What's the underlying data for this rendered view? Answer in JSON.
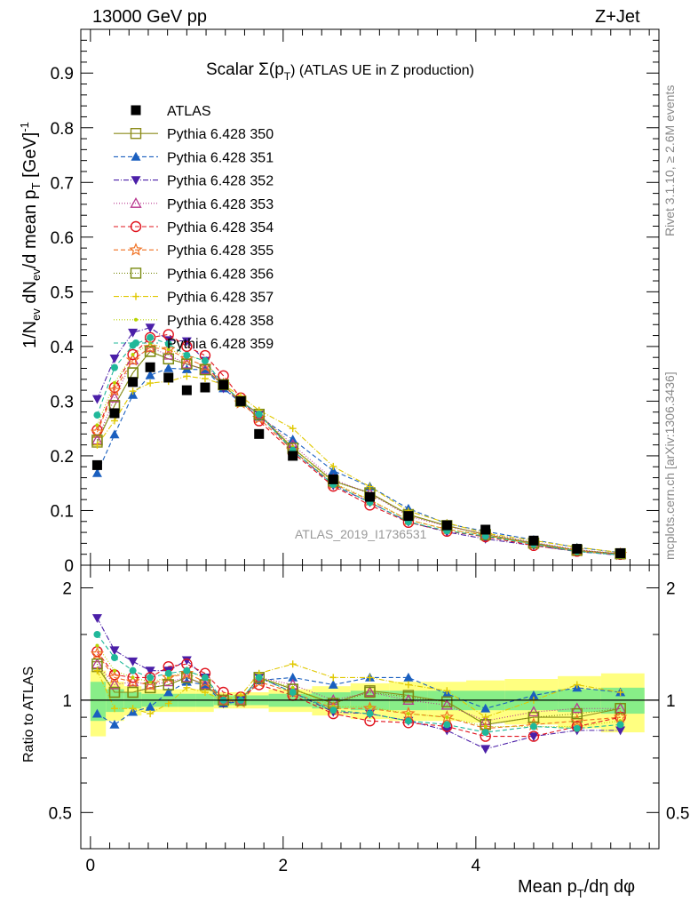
{
  "header": {
    "left": "13000 GeV pp",
    "right": "Z+Jet"
  },
  "side": {
    "rivet": "Rivet 3.1.10, ≥ 2.6M events",
    "mcplots": "mcplots.cern.ch [arXiv:1306.3436]"
  },
  "watermark": "ATLAS_2019_I1736531",
  "colors": {
    "data": "#000000",
    "p350": "#8c8c1a",
    "p351": "#1a5fbf",
    "p352": "#4b1fa8",
    "p353": "#b8378f",
    "p354": "#e0141e",
    "p355": "#f07020",
    "p356": "#7a8a10",
    "p357": "#e0c800",
    "p358": "#b8d400",
    "p359": "#20b89a",
    "band_green": "#88ee88",
    "band_yellow": "#ffff80"
  },
  "chart_data": {
    "type": "scatter",
    "title": "Scalar Σ(p_T) (ATLAS UE in Z production)",
    "title_main": "Scalar Σ(p",
    "title_sub": "T",
    "title_rest": ") (ATLAS UE in Z production)",
    "ylabel": "1/N_ev dN_ev/d mean p_T [GeV]^-1",
    "ylabel_parts": [
      "1/N",
      "ev",
      " dN",
      "ev",
      "/d mean p",
      "T",
      " [GeV]",
      "-1"
    ],
    "xlabel": "Mean p_T/dη dφ",
    "xlabel_parts": [
      "Mean p",
      "T",
      "/dη dφ"
    ],
    "ratio_ylabel": "Ratio to ATLAS",
    "xlim": [
      -0.1,
      5.9
    ],
    "ylim": [
      0,
      0.98
    ],
    "ratio_ylim": [
      0.4,
      2.3
    ],
    "ratio_scale": "log",
    "x_ticks": [
      0,
      2,
      4
    ],
    "y_ticks": [
      0,
      0.1,
      0.2,
      0.3,
      0.4,
      0.5,
      0.6,
      0.7,
      0.8,
      0.9
    ],
    "y_tick_labels": [
      "0",
      "0.1",
      "0.2",
      "0.3",
      "0.4",
      "0.5",
      "0.6",
      "0.7",
      "0.8",
      "0.9"
    ],
    "ratio_ticks": [
      0.5,
      1,
      2
    ],
    "ratio_tick_labels": [
      "0.5",
      "1",
      "2"
    ],
    "x": [
      0.07,
      0.25,
      0.44,
      0.62,
      0.81,
      1.0,
      1.19,
      1.38,
      1.56,
      1.75,
      2.1,
      2.52,
      2.9,
      3.3,
      3.7,
      4.1,
      4.6,
      5.05,
      5.5
    ],
    "x_edges": [
      0.0,
      0.16,
      0.35,
      0.53,
      0.72,
      0.91,
      1.09,
      1.28,
      1.47,
      1.66,
      1.85,
      2.3,
      2.7,
      3.1,
      3.5,
      3.9,
      4.3,
      4.85,
      5.3,
      5.75
    ],
    "data": {
      "name": "ATLAS",
      "values": [
        0.183,
        0.278,
        0.335,
        0.362,
        0.343,
        0.32,
        0.325,
        0.33,
        0.3,
        0.24,
        0.2,
        0.157,
        0.125,
        0.09,
        0.073,
        0.065,
        0.045,
        0.03,
        0.022
      ],
      "band_green": [
        0.12,
        0.07,
        0.05,
        0.04,
        0.04,
        0.04,
        0.04,
        0.03,
        0.03,
        0.03,
        0.04,
        0.05,
        0.06,
        0.06,
        0.06,
        0.06,
        0.06,
        0.07,
        0.08
      ],
      "band_yellow": [
        0.2,
        0.12,
        0.09,
        0.07,
        0.07,
        0.07,
        0.07,
        0.05,
        0.05,
        0.05,
        0.07,
        0.09,
        0.11,
        0.12,
        0.12,
        0.13,
        0.14,
        0.16,
        0.18
      ]
    },
    "series": [
      {
        "name": "Pythia 6.428 350",
        "key": "p350",
        "marker": "square-open",
        "dash": "",
        "ratios": [
          1.23,
          1.05,
          1.05,
          1.08,
          1.1,
          1.15,
          1.1,
          1.0,
          1.0,
          1.15,
          1.07,
          0.98,
          1.06,
          1.03,
          0.99,
          0.86,
          0.9,
          0.9,
          0.95
        ]
      },
      {
        "name": "Pythia 6.428 351",
        "key": "p351",
        "marker": "triangle-up",
        "dash": "5,3",
        "ratios": [
          0.92,
          0.86,
          0.93,
          0.96,
          1.05,
          1.12,
          1.1,
          0.98,
          0.99,
          1.13,
          1.15,
          1.1,
          1.15,
          1.15,
          1.04,
          0.95,
          1.03,
          1.08,
          1.05
        ]
      },
      {
        "name": "Pythia 6.428 352",
        "key": "p352",
        "marker": "triangle-down",
        "dash": "6,2,1,2",
        "ratios": [
          1.66,
          1.36,
          1.27,
          1.2,
          1.2,
          1.28,
          1.15,
          0.98,
          1.0,
          1.15,
          1.05,
          0.93,
          0.92,
          0.88,
          0.83,
          0.74,
          0.8,
          0.83,
          0.83
        ]
      },
      {
        "name": "Pythia 6.428 353",
        "key": "p353",
        "marker": "triangle-open",
        "dash": "1,2",
        "ratios": [
          1.25,
          1.1,
          1.12,
          1.1,
          1.12,
          1.15,
          1.1,
          1.0,
          1.0,
          1.15,
          1.1,
          1.0,
          1.05,
          1.0,
          0.97,
          0.88,
          0.93,
          0.95,
          0.95
        ]
      },
      {
        "name": "Pythia 6.428 354",
        "key": "p354",
        "marker": "circle-open",
        "dash": "5,3",
        "ratios": [
          1.35,
          1.17,
          1.15,
          1.15,
          1.23,
          1.25,
          1.18,
          1.05,
          1.02,
          1.1,
          1.03,
          0.92,
          0.88,
          0.87,
          0.85,
          0.8,
          0.8,
          0.85,
          0.9
        ]
      },
      {
        "name": "Pythia 6.428 355",
        "key": "p355",
        "marker": "star-open",
        "dash": "5,3",
        "ratios": [
          1.33,
          1.15,
          1.12,
          1.1,
          1.15,
          1.18,
          1.12,
          1.0,
          0.99,
          1.12,
          1.05,
          0.95,
          0.95,
          0.92,
          0.9,
          0.84,
          0.86,
          0.88,
          0.9
        ]
      },
      {
        "name": "Pythia 6.428 356",
        "key": "p356",
        "marker": "square-open",
        "dash": "1,2",
        "ratios": [
          1.25,
          1.05,
          1.05,
          1.08,
          1.1,
          1.15,
          1.1,
          1.0,
          1.0,
          1.15,
          1.07,
          0.98,
          1.05,
          1.02,
          0.99,
          0.86,
          0.9,
          0.92,
          0.95
        ]
      },
      {
        "name": "Pythia 6.428 357",
        "key": "p357",
        "marker": "cross",
        "dash": "6,2,1,2",
        "ratios": [
          1.2,
          0.95,
          0.95,
          0.92,
          0.98,
          1.08,
          1.05,
          1.0,
          1.03,
          1.18,
          1.25,
          1.15,
          1.15,
          1.1,
          1.06,
          0.9,
          1.0,
          1.1,
          1.05
        ]
      },
      {
        "name": "Pythia 6.428 358",
        "key": "p358",
        "marker": "dot",
        "dash": "1,2",
        "ratios": [
          1.4,
          1.2,
          1.15,
          1.12,
          1.15,
          1.2,
          1.15,
          1.0,
          1.0,
          1.15,
          1.08,
          0.96,
          0.96,
          0.92,
          0.9,
          0.85,
          0.85,
          0.85,
          0.88
        ]
      },
      {
        "name": "Pythia 6.428 359",
        "key": "p359",
        "marker": "circle",
        "dash": "5,3",
        "ratios": [
          1.5,
          1.3,
          1.2,
          1.15,
          1.18,
          1.2,
          1.15,
          1.0,
          1.0,
          1.15,
          1.05,
          0.94,
          0.92,
          0.88,
          0.86,
          0.82,
          0.85,
          0.84,
          0.86
        ]
      }
    ]
  }
}
